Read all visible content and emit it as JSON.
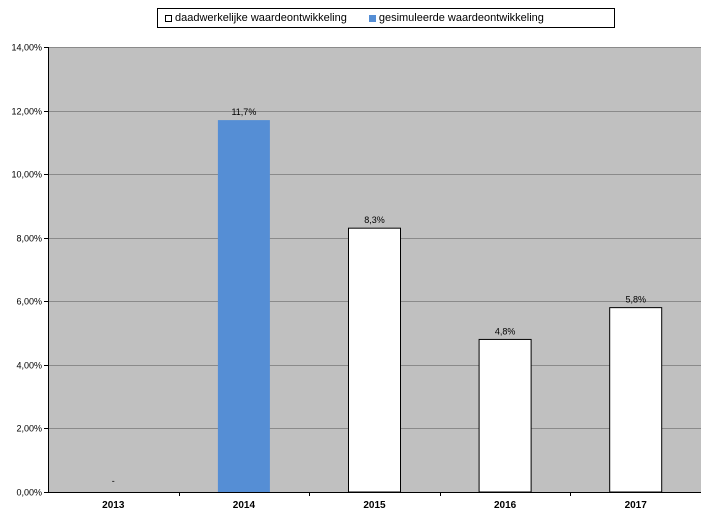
{
  "chart_data": {
    "type": "bar",
    "categories": [
      "2013",
      "2014",
      "2015",
      "2016",
      "2017"
    ],
    "values": [
      0,
      11.7,
      8.3,
      4.8,
      5.8
    ],
    "data_labels": [
      "-",
      "11,7%",
      "8,3%",
      "4,8%",
      "5,8%"
    ],
    "bar_series": [
      "actual",
      "simulated",
      "actual",
      "actual",
      "actual"
    ],
    "series": [
      {
        "name": "daadwerkelijke waardeontwikkeling",
        "key": "actual",
        "color": "#ffffff"
      },
      {
        "name": "gesimuleerde waardeontwikkeling",
        "key": "simulated",
        "color": "#558ed5"
      }
    ],
    "ylim": [
      0,
      14
    ],
    "yticks": [
      0,
      2,
      4,
      6,
      8,
      10,
      12,
      14
    ],
    "ytick_labels": [
      "0,00%",
      "2,00%",
      "4,00%",
      "6,00%",
      "8,00%",
      "10,00%",
      "12,00%",
      "14,00%"
    ],
    "grid": true,
    "plot_background": "#c0c0c0",
    "legend_position": "top"
  }
}
